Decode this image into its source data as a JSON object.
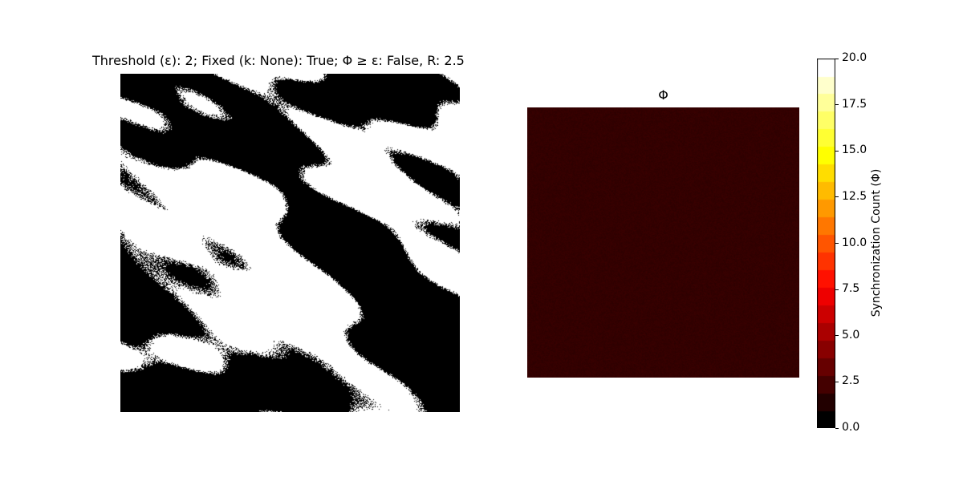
{
  "chart_data": [
    {
      "type": "heatmap",
      "title": "Threshold (ε): 2; Fixed (k: None): True; Φ ≥  ε: False, R: 2.5",
      "colormap": "binary",
      "colors": [
        "#000000",
        "#ffffff"
      ],
      "values": [
        0,
        1
      ],
      "grid": false
    },
    {
      "type": "heatmap",
      "title": "Φ",
      "colormap": "hot",
      "dominant_value": 1,
      "value_range": [
        0,
        2.5
      ],
      "grid": false,
      "colorbar": {
        "label": "Synchronization Count (Φ)",
        "range": [
          0.0,
          20.0
        ],
        "ticks": [
          0.0,
          2.5,
          5.0,
          7.5,
          10.0,
          12.5,
          15.0,
          17.5,
          20.0
        ],
        "tick_labels": [
          "0.0",
          "2.5",
          "5.0",
          "7.5",
          "10.0",
          "12.5",
          "15.0",
          "17.5",
          "20.0"
        ],
        "levels": 21,
        "colors": [
          "#000000",
          "#220000",
          "#440000",
          "#660000",
          "#880000",
          "#aa0000",
          "#cc0000",
          "#ee0000",
          "#ff1100",
          "#ff3300",
          "#ff5500",
          "#ff7700",
          "#ff9900",
          "#ffbb00",
          "#ffdd00",
          "#ffff00",
          "#ffff33",
          "#ffff66",
          "#ffff99",
          "#ffffcc",
          "#ffffff"
        ]
      }
    }
  ]
}
